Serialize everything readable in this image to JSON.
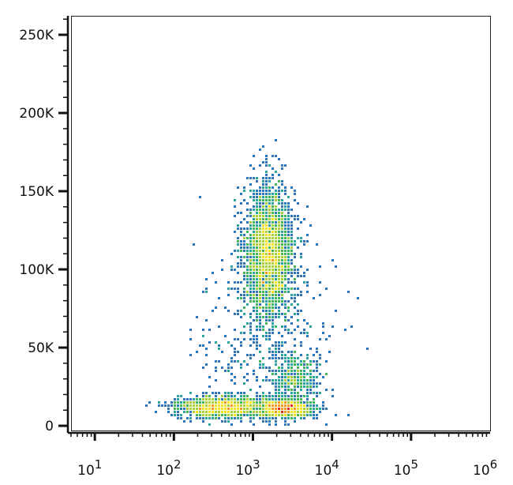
{
  "chart_data": {
    "type": "scatter",
    "title": "",
    "xlabel": "",
    "ylabel": "",
    "x_scale": "log",
    "xlim": [
      5,
      1000000
    ],
    "ylim": [
      -3000,
      262144
    ],
    "grid": false,
    "legend": "none",
    "rendering": "density-colored dot plot (pseudocolor: blue = low, red = high density)",
    "density_colors": [
      "#2b3f93",
      "#2f76b8",
      "#2da3a0",
      "#45b55a",
      "#a9cf3a",
      "#f3e21c",
      "#f39a1f",
      "#e3281f"
    ],
    "x_ticks": [
      {
        "value": 10,
        "base": "10",
        "exp": "1"
      },
      {
        "value": 100,
        "base": "10",
        "exp": "2"
      },
      {
        "value": 1000,
        "base": "10",
        "exp": "3"
      },
      {
        "value": 10000,
        "base": "10",
        "exp": "4"
      },
      {
        "value": 100000,
        "base": "10",
        "exp": "5"
      },
      {
        "value": 1000000,
        "base": "10",
        "exp": "6"
      }
    ],
    "y_ticks": [
      {
        "value": 0,
        "label": "0"
      },
      {
        "value": 50000,
        "label": "50K"
      },
      {
        "value": 100000,
        "label": "100K"
      },
      {
        "value": 150000,
        "label": "150K"
      },
      {
        "value": 200000,
        "label": "200K"
      },
      {
        "value": 250000,
        "label": "250K"
      }
    ],
    "populations": [
      {
        "center_x": 1600,
        "center_y": 110000,
        "spread_log_x": 0.16,
        "spread_y": 22000,
        "relative_size": 0.45
      },
      {
        "center_x": 400,
        "center_y": 12000,
        "spread_log_x": 0.28,
        "spread_y": 3500,
        "relative_size": 0.22
      },
      {
        "center_x": 2500,
        "center_y": 11000,
        "spread_log_x": 0.17,
        "spread_y": 2800,
        "relative_size": 0.17
      },
      {
        "center_x": 3500,
        "center_y": 30000,
        "spread_log_x": 0.16,
        "spread_y": 9000,
        "relative_size": 0.07
      },
      {
        "center_x": 1500,
        "center_y": 45000,
        "spread_log_x": 0.45,
        "spread_y": 40000,
        "relative_size": 0.09
      }
    ],
    "total_events": 5200
  }
}
